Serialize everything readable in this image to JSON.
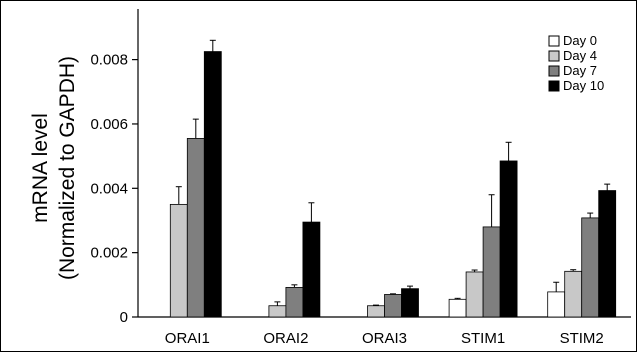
{
  "chart_data": {
    "type": "bar",
    "categories": [
      "ORAI1",
      "ORAI2",
      "ORAI3",
      "STIM1",
      "STIM2"
    ],
    "series": [
      {
        "name": "Day 0",
        "color": "#ffffff",
        "values": [
          0.0,
          0.0,
          0.0,
          0.00055,
          0.00078
        ],
        "errors": [
          0,
          0,
          0,
          3e-05,
          0.0003
        ]
      },
      {
        "name": "Day 4",
        "color": "#c8c8c8",
        "values": [
          0.0035,
          0.00035,
          0.00035,
          0.0014,
          0.00142
        ],
        "errors": [
          0.00055,
          0.00012,
          2e-05,
          6e-05,
          5e-05
        ]
      },
      {
        "name": "Day 7",
        "color": "#7f7f7f",
        "values": [
          0.00555,
          0.00092,
          0.0007,
          0.0028,
          0.00308
        ],
        "errors": [
          0.0006,
          8e-05,
          2e-05,
          0.001,
          0.00015
        ]
      },
      {
        "name": "Day 10",
        "color": "#000000",
        "values": [
          0.00825,
          0.00295,
          0.00088,
          0.00485,
          0.00393
        ],
        "errors": [
          0.00035,
          0.0006,
          8e-05,
          0.00058,
          0.0002
        ]
      }
    ],
    "yticks": [
      "0",
      "0.002",
      "0.004",
      "0.006",
      "0.008"
    ],
    "ylim": [
      0,
      0.0092
    ],
    "ylabel_line1": "mRNA level",
    "ylabel_line2": "(Normalized to GAPDH)",
    "legend_position": "top-right"
  }
}
